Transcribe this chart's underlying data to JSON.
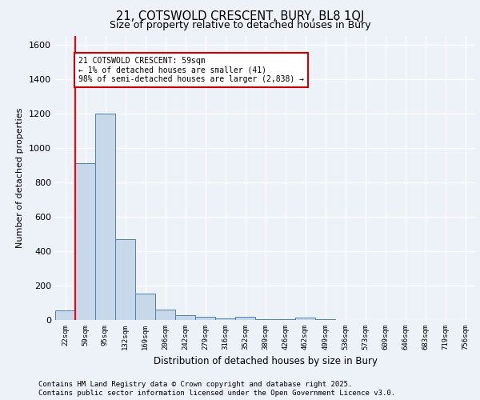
{
  "title_line1": "21, COTSWOLD CRESCENT, BURY, BL8 1QJ",
  "title_line2": "Size of property relative to detached houses in Bury",
  "xlabel": "Distribution of detached houses by size in Bury",
  "ylabel": "Number of detached properties",
  "bar_labels": [
    "22sqm",
    "59sqm",
    "95sqm",
    "132sqm",
    "169sqm",
    "206sqm",
    "242sqm",
    "279sqm",
    "316sqm",
    "352sqm",
    "389sqm",
    "426sqm",
    "462sqm",
    "499sqm",
    "536sqm",
    "573sqm",
    "609sqm",
    "646sqm",
    "683sqm",
    "719sqm",
    "756sqm"
  ],
  "bar_values": [
    55,
    910,
    1200,
    470,
    155,
    60,
    30,
    20,
    10,
    20,
    5,
    5,
    15,
    5,
    2,
    2,
    2,
    2,
    1,
    1,
    1
  ],
  "bar_color": "#c8d8eb",
  "bar_edgecolor": "#4f7faf",
  "red_line_index": 1,
  "annotation_text": "21 COTSWOLD CRESCENT: 59sqm\n← 1% of detached houses are smaller (41)\n98% of semi-detached houses are larger (2,838) →",
  "annotation_box_color": "#ffffff",
  "annotation_box_edgecolor": "#cc0000",
  "ylim": [
    0,
    1650
  ],
  "yticks": [
    0,
    200,
    400,
    600,
    800,
    1000,
    1200,
    1400,
    1600
  ],
  "background_color": "#edf1f8",
  "grid_color": "#ffffff",
  "footer_line1": "Contains HM Land Registry data © Crown copyright and database right 2025.",
  "footer_line2": "Contains public sector information licensed under the Open Government Licence v3.0."
}
